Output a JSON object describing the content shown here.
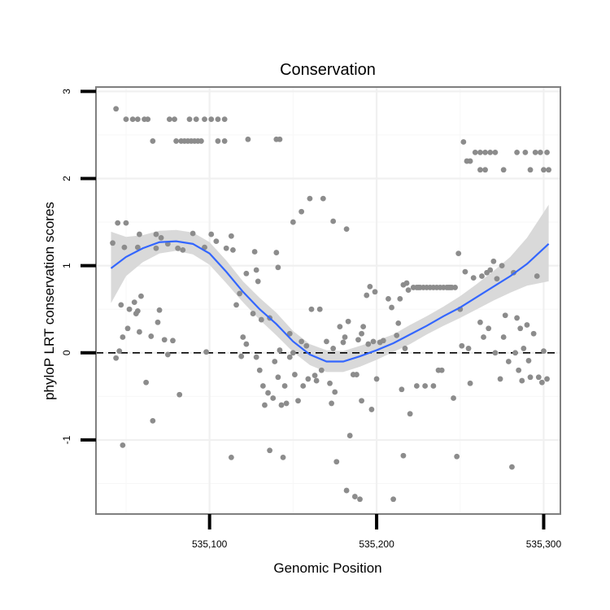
{
  "chart_data": {
    "type": "scatter",
    "title": "Conservation",
    "xlabel": "Genomic Position",
    "ylabel": "phyloP LRT conservation scores",
    "xlim": [
      535032,
      535310
    ],
    "ylim": [
      -1.85,
      3.05
    ],
    "x_ticks": [
      535100,
      535200,
      535300
    ],
    "x_tick_labels": [
      "535,100",
      "535,200",
      "535,300"
    ],
    "y_ticks": [
      -1,
      0,
      1,
      2,
      3
    ],
    "y_tick_labels": [
      "-1",
      "0",
      "1",
      "2",
      "3"
    ],
    "grid": true,
    "reference_line": {
      "y": 0,
      "style": "dashed"
    },
    "colors": {
      "points": "#8c8c8c",
      "smooth": "#3366ff",
      "band": "#d9d9d9"
    },
    "smooth": {
      "x": [
        535041,
        535050,
        535060,
        535070,
        535080,
        535090,
        535100,
        535110,
        535120,
        535130,
        535140,
        535150,
        535160,
        535170,
        535180,
        535190,
        535200,
        535210,
        535220,
        535230,
        535240,
        535250,
        535260,
        535270,
        535280,
        535290,
        535303
      ],
      "y": [
        0.97,
        1.1,
        1.2,
        1.27,
        1.28,
        1.25,
        1.14,
        0.93,
        0.7,
        0.5,
        0.33,
        0.13,
        -0.02,
        -0.1,
        -0.1,
        -0.04,
        0.03,
        0.11,
        0.21,
        0.31,
        0.42,
        0.52,
        0.64,
        0.76,
        0.88,
        1.02,
        1.25
      ],
      "lower": [
        0.57,
        0.88,
        1.04,
        1.14,
        1.17,
        1.13,
        1.01,
        0.8,
        0.58,
        0.38,
        0.2,
        0.01,
        -0.14,
        -0.22,
        -0.22,
        -0.16,
        -0.08,
        0.01,
        0.1,
        0.21,
        0.31,
        0.4,
        0.5,
        0.6,
        0.69,
        0.77,
        0.82
      ],
      "upper": [
        1.39,
        1.33,
        1.35,
        1.4,
        1.41,
        1.38,
        1.27,
        1.06,
        0.82,
        0.63,
        0.46,
        0.25,
        0.1,
        0.03,
        0.02,
        0.08,
        0.14,
        0.21,
        0.32,
        0.42,
        0.53,
        0.65,
        0.79,
        0.94,
        1.1,
        1.32,
        1.7
      ]
    },
    "points": [
      [
        535044,
        2.8
      ],
      [
        535050,
        2.68
      ],
      [
        535054,
        2.68
      ],
      [
        535057,
        2.68
      ],
      [
        535061,
        2.68
      ],
      [
        535063,
        2.68
      ],
      [
        535066,
        2.43
      ],
      [
        535076,
        2.68
      ],
      [
        535079,
        2.68
      ],
      [
        535088,
        2.68
      ],
      [
        535092,
        2.68
      ],
      [
        535097,
        2.68
      ],
      [
        535101,
        2.68
      ],
      [
        535105,
        2.68
      ],
      [
        535109,
        2.68
      ],
      [
        535080,
        2.43
      ],
      [
        535083,
        2.43
      ],
      [
        535085,
        2.43
      ],
      [
        535087,
        2.43
      ],
      [
        535089,
        2.43
      ],
      [
        535091,
        2.43
      ],
      [
        535093,
        2.43
      ],
      [
        535095,
        2.43
      ],
      [
        535105,
        2.43
      ],
      [
        535109,
        2.43
      ],
      [
        535123,
        2.45
      ],
      [
        535140,
        2.45
      ],
      [
        535142,
        2.45
      ],
      [
        535042,
        1.26
      ],
      [
        535045,
        1.49
      ],
      [
        535050,
        1.49
      ],
      [
        535049,
        1.21
      ],
      [
        535058,
        1.36
      ],
      [
        535057,
        1.21
      ],
      [
        535068,
        1.36
      ],
      [
        535071,
        1.32
      ],
      [
        535068,
        1.2
      ],
      [
        535075,
        1.25
      ],
      [
        535081,
        1.2
      ],
      [
        535084,
        1.18
      ],
      [
        535090,
        1.37
      ],
      [
        535097,
        1.21
      ],
      [
        535101,
        1.36
      ],
      [
        535104,
        1.28
      ],
      [
        535110,
        1.2
      ],
      [
        535113,
        1.34
      ],
      [
        535114,
        1.18
      ],
      [
        535122,
        0.91
      ],
      [
        535127,
        1.16
      ],
      [
        535128,
        0.95
      ],
      [
        535129,
        0.82
      ],
      [
        535140,
        1.15
      ],
      [
        535141,
        0.98
      ],
      [
        535150,
        1.5
      ],
      [
        535155,
        1.62
      ],
      [
        535160,
        1.77
      ],
      [
        535168,
        1.77
      ],
      [
        535174,
        1.51
      ],
      [
        535182,
        1.42
      ],
      [
        535044,
        -0.06
      ],
      [
        535046,
        0.02
      ],
      [
        535047,
        0.55
      ],
      [
        535048,
        0.18
      ],
      [
        535048,
        -1.06
      ],
      [
        535051,
        0.28
      ],
      [
        535052,
        0.5
      ],
      [
        535055,
        0.58
      ],
      [
        535057,
        0.48
      ],
      [
        535058,
        0.24
      ],
      [
        535059,
        0.65
      ],
      [
        535056,
        0.45
      ],
      [
        535062,
        -0.34
      ],
      [
        535065,
        0.19
      ],
      [
        535066,
        -0.78
      ],
      [
        535069,
        0.35
      ],
      [
        535070,
        0.49
      ],
      [
        535073,
        0.15
      ],
      [
        535075,
        -0.02
      ],
      [
        535078,
        0.14
      ],
      [
        535082,
        -0.48
      ],
      [
        535098,
        0.01
      ],
      [
        535113,
        -1.2
      ],
      [
        535116,
        0.55
      ],
      [
        535118,
        0.68
      ],
      [
        535119,
        -0.04
      ],
      [
        535120,
        0.18
      ],
      [
        535122,
        0.1
      ],
      [
        535126,
        0.45
      ],
      [
        535128,
        -0.05
      ],
      [
        535130,
        -0.2
      ],
      [
        535131,
        0.38
      ],
      [
        535132,
        -0.38
      ],
      [
        535133,
        -0.6
      ],
      [
        535135,
        -0.46
      ],
      [
        535136,
        0.4
      ],
      [
        535136,
        -1.12
      ],
      [
        535138,
        -0.52
      ],
      [
        535139,
        -0.1
      ],
      [
        535141,
        -0.28
      ],
      [
        535142,
        0.03
      ],
      [
        535143,
        -0.6
      ],
      [
        535144,
        -1.2
      ],
      [
        535145,
        -0.38
      ],
      [
        535146,
        -0.58
      ],
      [
        535148,
        0.22
      ],
      [
        535148,
        -0.05
      ],
      [
        535150,
        0.0
      ],
      [
        535151,
        -0.25
      ],
      [
        535153,
        -0.55
      ],
      [
        535155,
        0.13
      ],
      [
        535156,
        -0.38
      ],
      [
        535158,
        0.08
      ],
      [
        535159,
        -0.3
      ],
      [
        535161,
        0.5
      ],
      [
        535163,
        -0.26
      ],
      [
        535164,
        -0.32
      ],
      [
        535166,
        0.5
      ],
      [
        535167,
        -0.2
      ],
      [
        535170,
        0.13
      ],
      [
        535172,
        -0.35
      ],
      [
        535173,
        -0.58
      ],
      [
        535174,
        0.05
      ],
      [
        535175,
        -0.45
      ],
      [
        535176,
        -1.25
      ],
      [
        535178,
        0.3
      ],
      [
        535180,
        0.12
      ],
      [
        535181,
        0.18
      ],
      [
        535182,
        -1.58
      ],
      [
        535183,
        0.36
      ],
      [
        535184,
        -0.95
      ],
      [
        535186,
        -0.25
      ],
      [
        535187,
        -1.65
      ],
      [
        535188,
        -0.25
      ],
      [
        535189,
        0.15
      ],
      [
        535190,
        -1.68
      ],
      [
        535191,
        -0.55
      ],
      [
        535191,
        0.22
      ],
      [
        535192,
        0.3
      ],
      [
        535194,
        0.66
      ],
      [
        535195,
        0.1
      ],
      [
        535196,
        0.76
      ],
      [
        535197,
        -0.65
      ],
      [
        535198,
        0.13
      ],
      [
        535199,
        0.7
      ],
      [
        535200,
        -0.3
      ],
      [
        535202,
        0.12
      ],
      [
        535204,
        0.14
      ],
      [
        535207,
        0.62
      ],
      [
        535209,
        0.52
      ],
      [
        535210,
        -1.68
      ],
      [
        535212,
        0.2
      ],
      [
        535213,
        0.34
      ],
      [
        535214,
        0.62
      ],
      [
        535215,
        -0.42
      ],
      [
        535216,
        0.78
      ],
      [
        535216,
        -1.18
      ],
      [
        535217,
        0.05
      ],
      [
        535218,
        0.8
      ],
      [
        535219,
        0.72
      ],
      [
        535220,
        -0.7
      ],
      [
        535222,
        0.75
      ],
      [
        535224,
        0.75
      ],
      [
        535225,
        0.75
      ],
      [
        535224,
        -0.38
      ],
      [
        535226,
        0.75
      ],
      [
        535228,
        0.75
      ],
      [
        535229,
        -0.38
      ],
      [
        535230,
        0.75
      ],
      [
        535232,
        0.75
      ],
      [
        535234,
        -0.38
      ],
      [
        535234,
        0.75
      ],
      [
        535236,
        0.75
      ],
      [
        535237,
        -0.2
      ],
      [
        535238,
        0.75
      ],
      [
        535239,
        -0.2
      ],
      [
        535240,
        0.75
      ],
      [
        535242,
        0.75
      ],
      [
        535243,
        0.75
      ],
      [
        535244,
        0.75
      ],
      [
        535245,
        0.75
      ],
      [
        535246,
        -0.52
      ],
      [
        535247,
        0.75
      ],
      [
        535248,
        -1.19
      ],
      [
        535249,
        1.14
      ],
      [
        535250,
        0.5
      ],
      [
        535251,
        0.08
      ],
      [
        535252,
        2.42
      ],
      [
        535254,
        2.2
      ],
      [
        535256,
        2.2
      ],
      [
        535253,
        0.93
      ],
      [
        535255,
        0.05
      ],
      [
        535256,
        -0.35
      ],
      [
        535258,
        0.86
      ],
      [
        535259,
        2.3
      ],
      [
        535262,
        2.3
      ],
      [
        535265,
        2.3
      ],
      [
        535268,
        2.3
      ],
      [
        535271,
        2.3
      ],
      [
        535262,
        2.1
      ],
      [
        535265,
        2.1
      ],
      [
        535276,
        2.1
      ],
      [
        535284,
        2.3
      ],
      [
        535289,
        2.3
      ],
      [
        535292,
        2.1
      ],
      [
        535295,
        2.3
      ],
      [
        535298,
        2.3
      ],
      [
        535302,
        2.3
      ],
      [
        535300,
        2.1
      ],
      [
        535303,
        2.1
      ],
      [
        535262,
        0.35
      ],
      [
        535263,
        0.88
      ],
      [
        535264,
        0.18
      ],
      [
        535266,
        0.92
      ],
      [
        535267,
        0.28
      ],
      [
        535268,
        0.95
      ],
      [
        535270,
        1.05
      ],
      [
        535271,
        0.0
      ],
      [
        535272,
        0.85
      ],
      [
        535274,
        -0.3
      ],
      [
        535275,
        1.0
      ],
      [
        535276,
        0.18
      ],
      [
        535277,
        0.43
      ],
      [
        535279,
        -0.1
      ],
      [
        535281,
        -1.31
      ],
      [
        535282,
        0.92
      ],
      [
        535283,
        0.0
      ],
      [
        535284,
        0.4
      ],
      [
        535286,
        0.28
      ],
      [
        535285,
        -0.2
      ],
      [
        535287,
        -0.32
      ],
      [
        535288,
        0.05
      ],
      [
        535290,
        0.32
      ],
      [
        535291,
        -0.09
      ],
      [
        535292,
        -0.28
      ],
      [
        535294,
        0.22
      ],
      [
        535296,
        0.88
      ],
      [
        535297,
        -0.28
      ],
      [
        535299,
        -0.34
      ],
      [
        535300,
        0.02
      ],
      [
        535302,
        -0.3
      ]
    ]
  }
}
